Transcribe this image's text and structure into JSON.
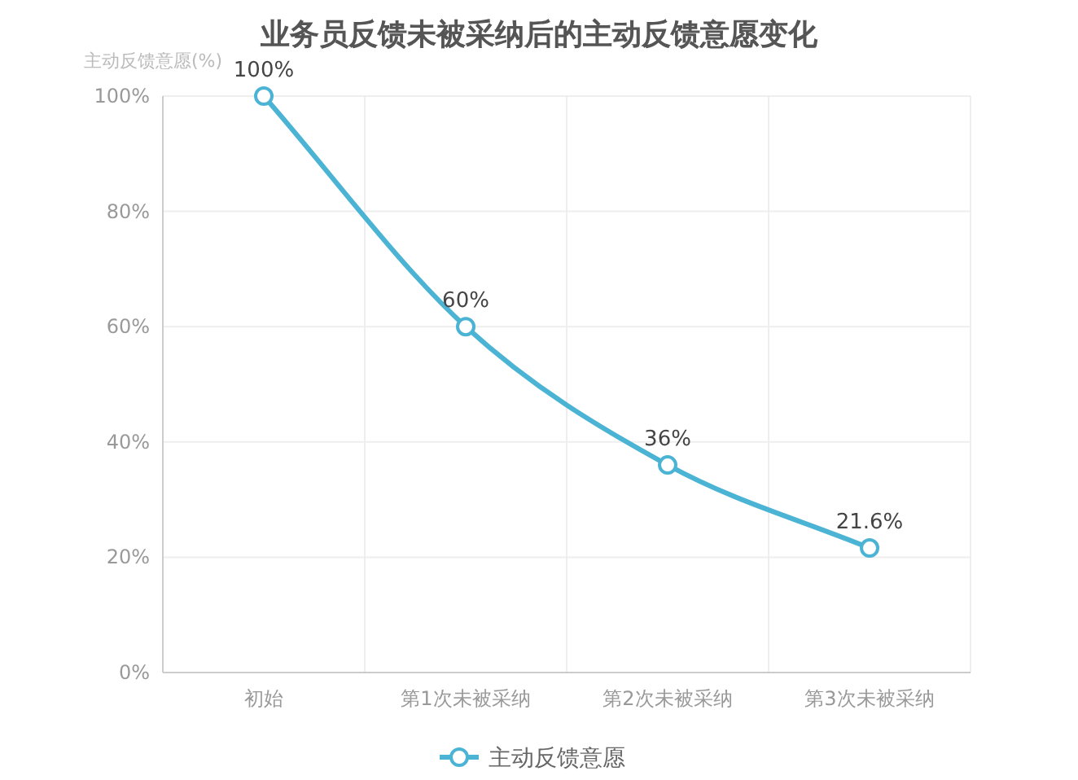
{
  "chart_data": {
    "type": "line",
    "title": "业务员反馈未被采纳后的主动反馈意愿变化",
    "ylabel": "主动反馈意愿(%)",
    "categories": [
      "初始",
      "第1次未被采纳",
      "第2次未被采纳",
      "第3次未被采纳"
    ],
    "series": [
      {
        "name": "主动反馈意愿",
        "color": "#4bb3d3",
        "values": [
          100,
          60,
          36,
          21.6
        ],
        "value_labels": [
          "100%",
          "60%",
          "36%",
          "21.6%"
        ]
      }
    ],
    "ylim": [
      0,
      100
    ],
    "yticks": [
      {
        "value": 0,
        "label": "0%"
      },
      {
        "value": 20,
        "label": "20%"
      },
      {
        "value": 40,
        "label": "40%"
      },
      {
        "value": 60,
        "label": "60%"
      },
      {
        "value": 80,
        "label": "80%"
      },
      {
        "value": 100,
        "label": "100%"
      }
    ],
    "grid": true,
    "legend": "bottom",
    "marker": "circle",
    "line_style": "solid"
  }
}
